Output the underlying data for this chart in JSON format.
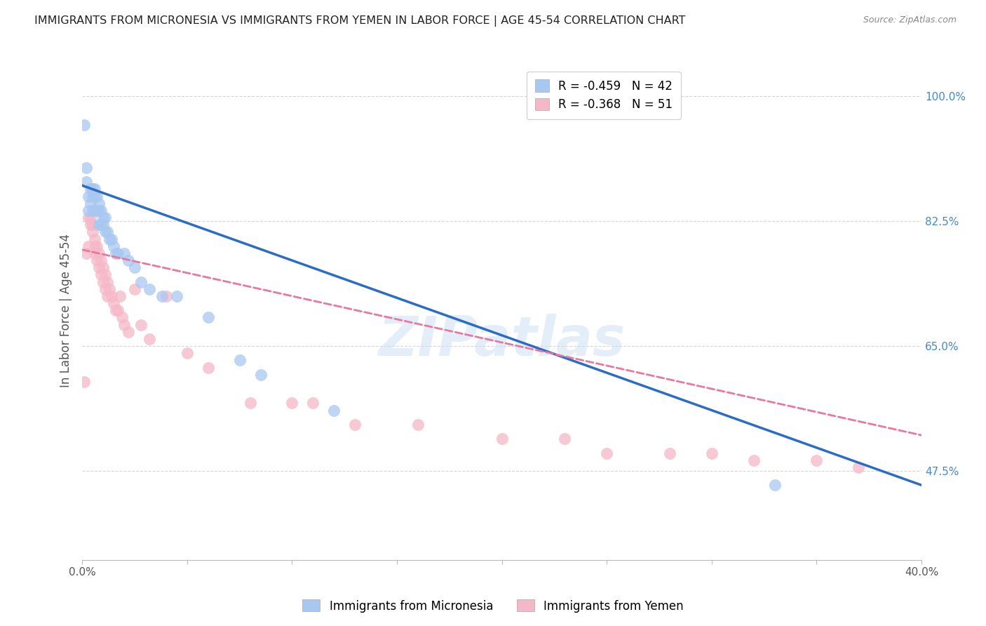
{
  "title": "IMMIGRANTS FROM MICRONESIA VS IMMIGRANTS FROM YEMEN IN LABOR FORCE | AGE 45-54 CORRELATION CHART",
  "source": "Source: ZipAtlas.com",
  "ylabel": "In Labor Force | Age 45-54",
  "xlim": [
    0.0,
    0.4
  ],
  "ylim": [
    0.35,
    1.05
  ],
  "xticks": [
    0.0,
    0.05,
    0.1,
    0.15,
    0.2,
    0.25,
    0.3,
    0.35,
    0.4
  ],
  "yticks": [
    0.475,
    0.65,
    0.825,
    1.0
  ],
  "yticklabels": [
    "47.5%",
    "65.0%",
    "82.5%",
    "100.0%"
  ],
  "grid_color": "#cccccc",
  "background_color": "#ffffff",
  "micronesia_color": "#a8c8f0",
  "yemen_color": "#f5b8c8",
  "micronesia_line_color": "#2b6cc4",
  "yemen_line_color": "#e878a0",
  "legend_R_micro": "-0.459",
  "legend_N_micro": "42",
  "legend_R_yemen": "-0.368",
  "legend_N_yemen": "51",
  "watermark": "ZIPatlas",
  "micronesia_x": [
    0.001,
    0.002,
    0.002,
    0.003,
    0.003,
    0.004,
    0.004,
    0.005,
    0.005,
    0.005,
    0.006,
    0.006,
    0.006,
    0.007,
    0.007,
    0.008,
    0.008,
    0.008,
    0.009,
    0.009,
    0.01,
    0.01,
    0.011,
    0.011,
    0.012,
    0.013,
    0.014,
    0.015,
    0.016,
    0.017,
    0.02,
    0.022,
    0.025,
    0.028,
    0.032,
    0.038,
    0.045,
    0.06,
    0.075,
    0.085,
    0.12,
    0.33
  ],
  "micronesia_y": [
    0.96,
    0.88,
    0.9,
    0.86,
    0.84,
    0.87,
    0.85,
    0.87,
    0.86,
    0.84,
    0.87,
    0.86,
    0.84,
    0.86,
    0.84,
    0.85,
    0.84,
    0.82,
    0.84,
    0.82,
    0.83,
    0.82,
    0.83,
    0.81,
    0.81,
    0.8,
    0.8,
    0.79,
    0.78,
    0.78,
    0.78,
    0.77,
    0.76,
    0.74,
    0.73,
    0.72,
    0.72,
    0.69,
    0.63,
    0.61,
    0.56,
    0.455
  ],
  "yemen_x": [
    0.001,
    0.002,
    0.003,
    0.003,
    0.004,
    0.004,
    0.005,
    0.005,
    0.006,
    0.006,
    0.006,
    0.007,
    0.007,
    0.008,
    0.008,
    0.009,
    0.009,
    0.01,
    0.01,
    0.011,
    0.011,
    0.012,
    0.012,
    0.013,
    0.014,
    0.015,
    0.016,
    0.017,
    0.018,
    0.019,
    0.02,
    0.022,
    0.025,
    0.028,
    0.032,
    0.04,
    0.05,
    0.06,
    0.08,
    0.1,
    0.11,
    0.13,
    0.16,
    0.2,
    0.23,
    0.25,
    0.28,
    0.3,
    0.32,
    0.35,
    0.37
  ],
  "yemen_y": [
    0.6,
    0.78,
    0.79,
    0.83,
    0.82,
    0.83,
    0.82,
    0.81,
    0.8,
    0.79,
    0.78,
    0.79,
    0.77,
    0.78,
    0.76,
    0.77,
    0.75,
    0.76,
    0.74,
    0.75,
    0.73,
    0.74,
    0.72,
    0.73,
    0.72,
    0.71,
    0.7,
    0.7,
    0.72,
    0.69,
    0.68,
    0.67,
    0.73,
    0.68,
    0.66,
    0.72,
    0.64,
    0.62,
    0.57,
    0.57,
    0.57,
    0.54,
    0.54,
    0.52,
    0.52,
    0.5,
    0.5,
    0.5,
    0.49,
    0.49,
    0.48
  ]
}
